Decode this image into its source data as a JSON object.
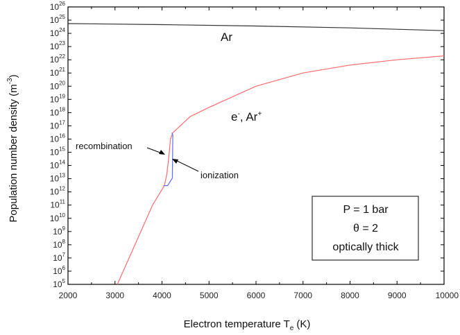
{
  "chart_data": {
    "type": "line",
    "xlabel_main": "Electron temperature T",
    "xlabel_sub": "e",
    "xlabel_unit": "(K)",
    "ylabel_main": "Population number density (m",
    "ylabel_sup": "-3",
    "ylabel_end": ")",
    "xlim": [
      2000,
      10000
    ],
    "ylim_log10": [
      5,
      26
    ],
    "y_scale": "log",
    "x_ticks": [
      2000,
      3000,
      4000,
      5000,
      6000,
      7000,
      8000,
      9000,
      10000
    ],
    "x_tick_labels": [
      "2000",
      "3000",
      "4000",
      "5000",
      "6000",
      "7000",
      "8000",
      "9000",
      "10000"
    ],
    "y_tick_base": "10",
    "y_tick_exponents": [
      "5",
      "6",
      "7",
      "8",
      "9",
      "10",
      "11",
      "12",
      "13",
      "14",
      "15",
      "16",
      "17",
      "18",
      "19",
      "20",
      "21",
      "22",
      "23",
      "24",
      "25",
      "26"
    ],
    "series": [
      {
        "color": "#333333",
        "points": [
          [
            2000,
            5.5e+24
          ],
          [
            4000,
            4.6e+24
          ],
          [
            6000,
            3.6e+24
          ],
          [
            8000,
            2.6e+24
          ],
          [
            10000,
            1.6e+24
          ]
        ]
      },
      {
        "color": "#ff6b6b",
        "points": [
          [
            3050,
            100000.0
          ],
          [
            3300,
            10000000.0
          ],
          [
            3550,
            1000000000.0
          ],
          [
            3800,
            100000000000.0
          ],
          [
            4050,
            3000000000000.0
          ],
          [
            4100,
            20000000000000.0
          ],
          [
            4140,
            300000000000000.0
          ],
          [
            4180,
            1e+16
          ],
          [
            4230,
            3e+16
          ],
          [
            4600,
            5e+17
          ],
          [
            5000,
            2.5e+18
          ],
          [
            6000,
            1e+20
          ],
          [
            7000,
            1e+21
          ],
          [
            8000,
            4e+21
          ],
          [
            9000,
            1e+22
          ],
          [
            10000,
            2e+22
          ]
        ]
      },
      {
        "color": "#5b6cff",
        "points": [
          [
            4030,
            3000000000000.0
          ],
          [
            4120,
            3000000000000.0
          ],
          [
            4220,
            11000000000000.0
          ],
          [
            4230,
            2e+16
          ],
          [
            4210,
            3e+16
          ]
        ]
      }
    ],
    "annotations": {
      "ar_label": "Ar",
      "e_label": "e",
      "e_sup": "-",
      "ar_plus_label": ", Ar",
      "ar_plus_sup": "+",
      "recombination_label": "recombination",
      "ionization_label": "ionization",
      "box_line1": "P = 1 bar",
      "box_line2": "θ = 2",
      "box_line3": "optically thick"
    }
  }
}
